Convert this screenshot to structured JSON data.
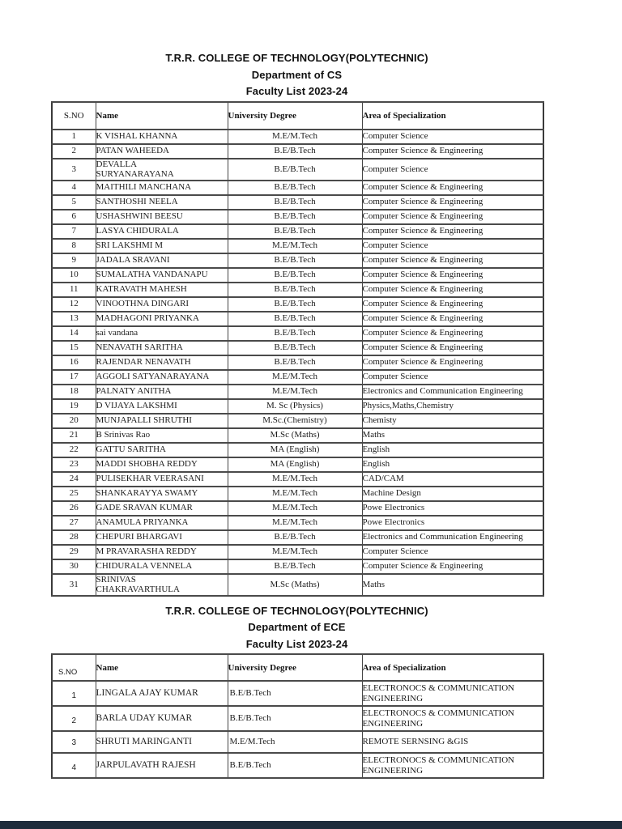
{
  "viewer": {
    "bottom_bar_color": "#1e2d3d"
  },
  "sections": [
    {
      "title": "T.R.R. COLLEGE OF TECHNOLOGY(POLYTECHNIC)",
      "subtitle": "Department of CS",
      "list_title": "Faculty List 2023-24",
      "headers": {
        "sno": "S.NO",
        "name": "Name",
        "degree": "University Degree",
        "area": "Area of Specialization"
      },
      "rows": [
        {
          "sno": "1",
          "name": "K VISHAL KHANNA",
          "degree": "M.E/M.Tech",
          "area": "Computer Science"
        },
        {
          "sno": "2",
          "name": "PATAN WAHEEDA",
          "degree": "B.E/B.Tech",
          "area": "Computer Science & Engineering"
        },
        {
          "sno": "3",
          "name": "DEVALLA\nSURYANARAYANA",
          "degree": "B.E/B.Tech",
          "area": "Computer Science"
        },
        {
          "sno": "4",
          "name": "MAITHILI MANCHANA",
          "degree": "B.E/B.Tech",
          "area": "Computer Science & Engineering"
        },
        {
          "sno": "5",
          "name": "SANTHOSHI NEELA",
          "degree": "B.E/B.Tech",
          "area": "Computer Science & Engineering"
        },
        {
          "sno": "6",
          "name": "USHASHWINI BEESU",
          "degree": "B.E/B.Tech",
          "area": "Computer Science & Engineering"
        },
        {
          "sno": "7",
          "name": "LASYA CHIDURALA",
          "degree": "B.E/B.Tech",
          "area": "Computer Science & Engineering"
        },
        {
          "sno": "8",
          "name": "SRI LAKSHMI M",
          "degree": "M.E/M.Tech",
          "area": "Computer Science"
        },
        {
          "sno": "9",
          "name": "JADALA SRAVANI",
          "degree": "B.E/B.Tech",
          "area": "Computer Science & Engineering"
        },
        {
          "sno": "10",
          "name": "SUMALATHA VANDANAPU",
          "degree": "B.E/B.Tech",
          "area": "Computer Science & Engineering"
        },
        {
          "sno": "11",
          "name": "KATRAVATH MAHESH",
          "degree": "B.E/B.Tech",
          "area": "Computer Science & Engineering"
        },
        {
          "sno": "12",
          "name": "VINOOTHNA DINGARI",
          "degree": "B.E/B.Tech",
          "area": "Computer Science & Engineering"
        },
        {
          "sno": "13",
          "name": "MADHAGONI PRIYANKA",
          "degree": "B.E/B.Tech",
          "area": "Computer Science & Engineering"
        },
        {
          "sno": "14",
          "name": "sai vandana",
          "degree": "B.E/B.Tech",
          "area": "Computer Science & Engineering"
        },
        {
          "sno": "15",
          "name": "NENAVATH SARITHA",
          "degree": "B.E/B.Tech",
          "area": "Computer Science & Engineering"
        },
        {
          "sno": "16",
          "name": "RAJENDAR NENAVATH",
          "degree": "B.E/B.Tech",
          "area": "Computer Science & Engineering"
        },
        {
          "sno": "17",
          "name": "AGGOLI SATYANARAYANA",
          "degree": "M.E/M.Tech",
          "area": "Computer Science"
        },
        {
          "sno": "18",
          "name": "PALNATY ANITHA",
          "degree": "M.E/M.Tech",
          "area": "Electronics and Communication Engineering"
        },
        {
          "sno": "19",
          "name": "D VIJAYA LAKSHMI",
          "degree": "M. Sc (Physics)",
          "area": "Physics,Maths,Chemistry"
        },
        {
          "sno": "20",
          "name": "MUNJAPALLI SHRUTHI",
          "degree": "M.Sc.(Chemistry)",
          "area": "Chemisty"
        },
        {
          "sno": "21",
          "name": "B Srinivas Rao",
          "degree": "M.Sc (Maths)",
          "area": "Maths"
        },
        {
          "sno": "22",
          "name": "GATTU SARITHA",
          "degree": "MA (English)",
          "area": "English"
        },
        {
          "sno": "23",
          "name": "MADDI SHOBHA REDDY",
          "degree": "MA (English)",
          "area": "English"
        },
        {
          "sno": "24",
          "name": "PULISEKHAR VEERASANI",
          "degree": "M.E/M.Tech",
          "area": "CAD/CAM"
        },
        {
          "sno": "25",
          "name": "SHANKARAYYA SWAMY",
          "degree": "M.E/M.Tech",
          "area": "Machine Design"
        },
        {
          "sno": "26",
          "name": "GADE SRAVAN KUMAR",
          "degree": "M.E/M.Tech",
          "area": "Powe Electronics"
        },
        {
          "sno": "27",
          "name": "ANAMULA PRIYANKA",
          "degree": "M.E/M.Tech",
          "area": "Powe Electronics"
        },
        {
          "sno": "28",
          "name": "CHEPURI BHARGAVI",
          "degree": "B.E/B.Tech",
          "area": "Electronics and Communication Engineering"
        },
        {
          "sno": "29",
          "name": "M PRAVARASHA REDDY",
          "degree": "M.E/M.Tech",
          "area": "Computer Science"
        },
        {
          "sno": "30",
          "name": "CHIDURALA VENNELA",
          "degree": "B.E/B.Tech",
          "area": "Computer Science & Engineering"
        },
        {
          "sno": "31",
          "name": "SRINIVAS\nCHAKRAVARTHULA",
          "degree": "M.Sc (Maths)",
          "area": "Maths"
        }
      ]
    },
    {
      "title": "T.R.R. COLLEGE OF TECHNOLOGY(POLYTECHNIC)",
      "subtitle": "Department of ECE",
      "list_title": "Faculty List 2023-24",
      "headers": {
        "sno": "S.NO",
        "name": "Name",
        "degree": "University Degree",
        "area": "Area of Specialization"
      },
      "rows": [
        {
          "sno": "1",
          "name": "LINGALA AJAY KUMAR",
          "degree": "B.E/B.Tech",
          "area": "ELECTRONOCS & COMMUNICATION\nENGINEERING"
        },
        {
          "sno": "2",
          "name": "BARLA UDAY KUMAR",
          "degree": "B.E/B.Tech",
          "area": "ELECTRONOCS & COMMUNICATION\nENGINEERING"
        },
        {
          "sno": "3",
          "name": "SHRUTI MARINGANTI",
          "degree": "M.E/M.Tech",
          "area": "REMOTE SERNSING &GIS"
        },
        {
          "sno": "4",
          "name": "JARPULAVATH RAJESH",
          "degree": "B.E/B.Tech",
          "area": "ELECTRONOCS & COMMUNICATION\nENGINEERING"
        }
      ]
    }
  ]
}
